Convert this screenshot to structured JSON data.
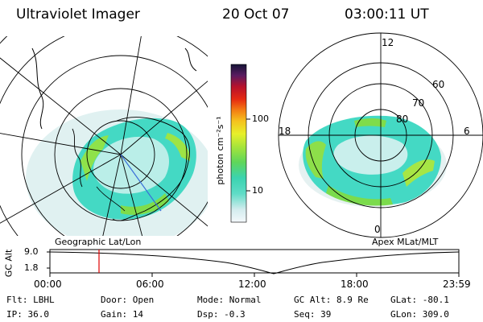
{
  "header": {
    "instrument": "Ultraviolet Imager",
    "date": "20 Oct 07",
    "time": "03:00:11 UT"
  },
  "colorbar": {
    "unit_label": "photon cm⁻²s⁻¹",
    "ticks": [
      "100",
      "10"
    ],
    "scale": "log"
  },
  "panels": {
    "left_caption": "Geographic Lat/Lon",
    "right_caption": "Apex MLat/MLT",
    "right_mlt_labels": {
      "top": "12",
      "left": "18",
      "right": "6",
      "bottom": "0"
    },
    "right_mlat_labels": [
      "60",
      "70",
      "80"
    ]
  },
  "altitude_plot": {
    "ylabel": "GC Alt",
    "yticks": [
      "9.0",
      "1.8"
    ],
    "xticks": [
      "00:00",
      "06:00",
      "12:00",
      "18:00",
      "23:59"
    ],
    "marker_time": "03:00:11"
  },
  "status": {
    "row1": {
      "flt": "Flt: LBHL",
      "door": "Door: Open",
      "mode": "Mode: Normal",
      "gcalt": "GC Alt: 8.9 Re",
      "glat": "GLat: -80.1"
    },
    "row2": {
      "ip": "IP: 36.0",
      "gain": "Gain: 14",
      "dsp": "Dsp:    -0.3",
      "seq": "Seq: 39",
      "glon": "GLon: 309.0"
    }
  },
  "colors": {
    "background": "#ffffff",
    "marker": "#e00000",
    "emission_low": "#3dd9c1",
    "emission_mid": "#7ee04b",
    "emission_high": "#c8f02a",
    "fov_edge": "#d8ecec"
  }
}
